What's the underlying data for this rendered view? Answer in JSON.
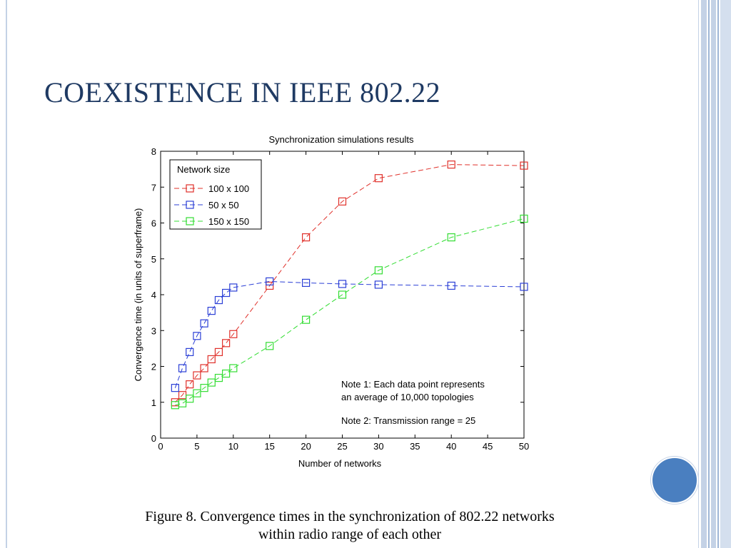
{
  "slide": {
    "title": "COEXISTENCE IN IEEE 802.22",
    "caption_line1": "Figure 8. Convergence times in the synchronization of 802.22 networks",
    "caption_line2": "within radio range of each other"
  },
  "chart_data": {
    "type": "line",
    "title": "Synchronization simulations results",
    "xlabel": "Number of networks",
    "ylabel": "Convergence time (in units of superframe)",
    "xlim": [
      0,
      50
    ],
    "ylim": [
      0,
      8
    ],
    "xticks": [
      0,
      5,
      10,
      15,
      20,
      25,
      30,
      35,
      40,
      45,
      50
    ],
    "yticks": [
      0,
      1,
      2,
      3,
      4,
      5,
      6,
      7,
      8
    ],
    "grid": false,
    "legend_title": "Network size",
    "legend_position": "top-left",
    "series": [
      {
        "name": "100 x 100",
        "color": "#e0302a",
        "marker": "square",
        "line": "dashed",
        "x": [
          2,
          3,
          4,
          5,
          6,
          7,
          8,
          9,
          10,
          15,
          20,
          25,
          30,
          40,
          50
        ],
        "y": [
          1.0,
          1.2,
          1.5,
          1.75,
          1.95,
          2.2,
          2.4,
          2.65,
          2.9,
          4.25,
          5.6,
          6.6,
          7.25,
          7.63,
          7.6
        ]
      },
      {
        "name": "50 x 50",
        "color": "#2b3fd6",
        "marker": "square",
        "line": "dashed",
        "x": [
          2,
          3,
          4,
          5,
          6,
          7,
          8,
          9,
          10,
          15,
          20,
          25,
          30,
          40,
          50
        ],
        "y": [
          1.4,
          1.95,
          2.4,
          2.85,
          3.2,
          3.55,
          3.85,
          4.05,
          4.2,
          4.37,
          4.33,
          4.3,
          4.28,
          4.25,
          4.22
        ]
      },
      {
        "name": "150 x 150",
        "color": "#33dd33",
        "marker": "square",
        "line": "dashed",
        "x": [
          2,
          3,
          4,
          5,
          6,
          7,
          8,
          9,
          10,
          15,
          20,
          25,
          30,
          40,
          50
        ],
        "y": [
          0.92,
          0.97,
          1.1,
          1.25,
          1.4,
          1.55,
          1.68,
          1.8,
          1.95,
          2.57,
          3.3,
          4.0,
          4.68,
          5.6,
          6.12
        ]
      }
    ],
    "annotations": [
      "Note 1: Each data point represents",
      "an average of 10,000 topologies",
      "Note 2: Transmission range = 25"
    ]
  }
}
